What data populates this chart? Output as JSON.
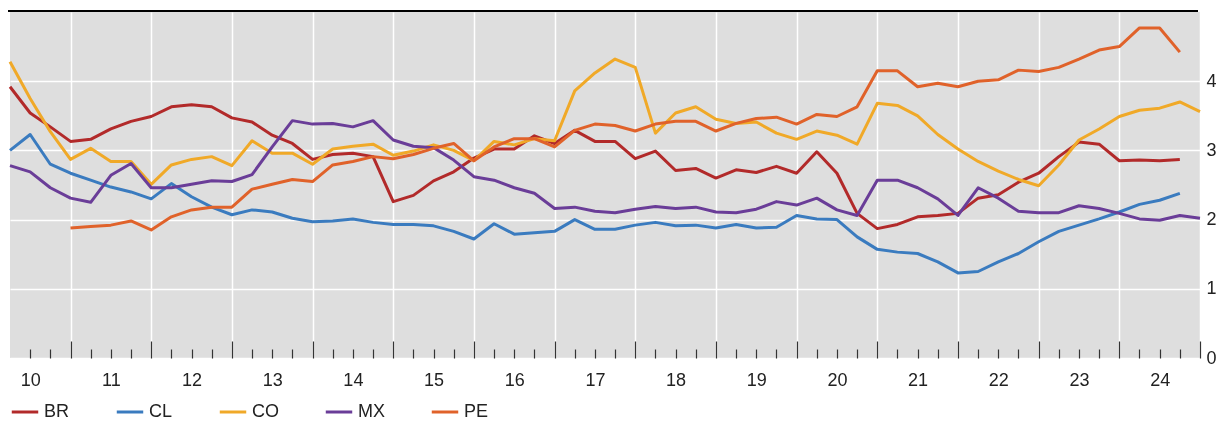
{
  "chart_data": {
    "type": "line",
    "x": [
      9.75,
      10,
      10.25,
      10.5,
      10.75,
      11,
      11.25,
      11.5,
      11.75,
      12,
      12.25,
      12.5,
      12.75,
      13,
      13.25,
      13.5,
      13.75,
      14,
      14.25,
      14.5,
      14.75,
      15,
      15.25,
      15.5,
      15.75,
      16,
      16.25,
      16.5,
      16.75,
      17,
      17.25,
      17.5,
      17.75,
      18,
      18.25,
      18.5,
      18.75,
      19,
      19.25,
      19.5,
      19.75,
      20,
      20.25,
      20.5,
      20.75,
      21,
      21.25,
      21.5,
      21.75,
      22,
      22.25,
      22.5,
      22.75,
      23,
      23.25,
      23.5,
      23.75,
      24,
      24.25,
      24.5
    ],
    "series": [
      {
        "name": "BR",
        "color": "#b22a2a",
        "values": [
          3.92,
          3.54,
          3.34,
          3.13,
          3.16,
          3.31,
          3.42,
          3.49,
          3.63,
          3.66,
          3.63,
          3.47,
          3.41,
          3.22,
          3.1,
          2.87,
          2.94,
          2.96,
          2.91,
          2.26,
          2.35,
          2.56,
          2.69,
          2.89,
          3.02,
          3.02,
          3.21,
          3.1,
          3.29,
          3.13,
          3.13,
          2.88,
          2.99,
          2.71,
          2.74,
          2.6,
          2.72,
          2.68,
          2.77,
          2.67,
          2.98,
          2.67,
          2.09,
          1.87,
          1.93,
          2.04,
          2.06,
          2.09,
          2.31,
          2.36,
          2.54,
          2.67,
          2.91,
          3.12,
          3.09,
          2.85,
          2.86,
          2.85,
          2.87,
          null
        ]
      },
      {
        "name": "CL",
        "color": "#3a7bbf",
        "values": [
          3.0,
          3.23,
          2.8,
          2.67,
          2.57,
          2.47,
          2.4,
          2.3,
          2.52,
          2.33,
          2.18,
          2.07,
          2.14,
          2.11,
          2.02,
          1.97,
          1.98,
          2.01,
          1.96,
          1.93,
          1.93,
          1.91,
          1.83,
          1.72,
          1.94,
          1.79,
          1.81,
          1.83,
          2.0,
          1.86,
          1.86,
          1.92,
          1.96,
          1.91,
          1.92,
          1.88,
          1.93,
          1.88,
          1.89,
          2.06,
          2.01,
          2.0,
          1.75,
          1.57,
          1.53,
          1.51,
          1.39,
          1.23,
          1.25,
          1.39,
          1.51,
          1.68,
          1.83,
          1.92,
          2.01,
          2.11,
          2.22,
          2.28,
          2.38,
          null
        ]
      },
      {
        "name": "CO",
        "color": "#f0a928",
        "values": [
          4.28,
          3.75,
          3.27,
          2.87,
          3.03,
          2.84,
          2.84,
          2.51,
          2.79,
          2.87,
          2.91,
          2.78,
          3.14,
          2.96,
          2.96,
          2.8,
          3.02,
          3.06,
          3.09,
          2.93,
          2.99,
          3.08,
          3.0,
          2.85,
          3.13,
          3.08,
          3.17,
          3.14,
          3.86,
          4.12,
          4.32,
          4.2,
          3.25,
          3.54,
          3.63,
          3.45,
          3.39,
          3.41,
          3.25,
          3.16,
          3.28,
          3.22,
          3.09,
          3.68,
          3.65,
          3.5,
          3.23,
          3.02,
          2.84,
          2.7,
          2.58,
          2.49,
          2.79,
          3.15,
          3.31,
          3.49,
          3.58,
          3.61,
          3.7,
          3.56
        ]
      },
      {
        "name": "MX",
        "color": "#6a3d98",
        "values": [
          2.78,
          2.69,
          2.46,
          2.31,
          2.25,
          2.64,
          2.81,
          2.46,
          2.46,
          2.51,
          2.56,
          2.55,
          2.65,
          3.05,
          3.43,
          3.38,
          3.39,
          3.34,
          3.43,
          3.15,
          3.06,
          3.04,
          2.86,
          2.62,
          2.57,
          2.46,
          2.38,
          2.16,
          2.18,
          2.12,
          2.1,
          2.15,
          2.19,
          2.16,
          2.18,
          2.11,
          2.1,
          2.15,
          2.26,
          2.21,
          2.31,
          2.14,
          2.06,
          2.57,
          2.57,
          2.46,
          2.3,
          2.06,
          2.46,
          2.31,
          2.12,
          2.1,
          2.1,
          2.2,
          2.16,
          2.09,
          2.01,
          1.99,
          2.06,
          2.02
        ]
      },
      {
        "name": "PE",
        "color": "#e0622a",
        "values": [
          null,
          null,
          null,
          1.88,
          1.9,
          1.92,
          1.98,
          1.85,
          2.04,
          2.14,
          2.18,
          2.18,
          2.44,
          2.51,
          2.58,
          2.55,
          2.79,
          2.84,
          2.91,
          2.88,
          2.94,
          3.03,
          3.1,
          2.85,
          3.05,
          3.17,
          3.17,
          3.05,
          3.29,
          3.38,
          3.36,
          3.28,
          3.38,
          3.42,
          3.42,
          3.28,
          3.39,
          3.46,
          3.48,
          3.38,
          3.52,
          3.49,
          3.63,
          4.15,
          4.15,
          3.92,
          3.97,
          3.92,
          4.0,
          4.02,
          4.16,
          4.14,
          4.2,
          4.32,
          4.45,
          4.5,
          4.77,
          4.77,
          4.42,
          null
        ]
      }
    ],
    "xlim": [
      9.75,
      24.5
    ],
    "xticks": [
      10,
      {
        "value": 10.25,
        "label": null
      },
      {
        "value": 10.5,
        "label": null
      },
      {
        "value": 10.75,
        "label": null
      },
      11,
      {
        "value": 11.25,
        "label": null
      },
      {
        "value": 11.5,
        "label": null
      },
      {
        "value": 11.75,
        "label": null
      },
      12,
      {
        "value": 12.25,
        "label": null
      },
      {
        "value": 12.5,
        "label": null
      },
      {
        "value": 12.75,
        "label": null
      },
      13,
      {
        "value": 13.25,
        "label": null
      },
      {
        "value": 13.5,
        "label": null
      },
      {
        "value": 13.75,
        "label": null
      },
      14,
      {
        "value": 14.25,
        "label": null
      },
      {
        "value": 14.5,
        "label": null
      },
      {
        "value": 14.75,
        "label": null
      },
      15,
      {
        "value": 15.25,
        "label": null
      },
      {
        "value": 15.5,
        "label": null
      },
      {
        "value": 15.75,
        "label": null
      },
      16,
      {
        "value": 16.25,
        "label": null
      },
      {
        "value": 16.5,
        "label": null
      },
      {
        "value": 16.75,
        "label": null
      },
      17,
      {
        "value": 17.25,
        "label": null
      },
      {
        "value": 17.5,
        "label": null
      },
      {
        "value": 17.75,
        "label": null
      },
      18,
      {
        "value": 18.25,
        "label": null
      },
      {
        "value": 18.5,
        "label": null
      },
      {
        "value": 18.75,
        "label": null
      },
      19,
      {
        "value": 19.25,
        "label": null
      },
      {
        "value": 19.5,
        "label": null
      },
      {
        "value": 19.75,
        "label": null
      },
      20,
      {
        "value": 20.25,
        "label": null
      },
      {
        "value": 20.5,
        "label": null
      },
      {
        "value": 20.75,
        "label": null
      },
      21,
      {
        "value": 21.25,
        "label": null
      },
      {
        "value": 21.5,
        "label": null
      },
      {
        "value": 21.75,
        "label": null
      },
      22,
      {
        "value": 22.25,
        "label": null
      },
      {
        "value": 22.5,
        "label": null
      },
      {
        "value": 22.75,
        "label": null
      },
      23,
      {
        "value": 23.25,
        "label": null
      },
      {
        "value": 23.5,
        "label": null
      },
      {
        "value": 23.75,
        "label": null
      },
      24,
      {
        "value": 24.25,
        "label": null
      },
      {
        "value": 24.5,
        "label": null
      }
    ],
    "ylim": [
      0,
      5
    ],
    "yticks": [
      0,
      1,
      2,
      3,
      4
    ],
    "grid": true,
    "legend": "bottom left",
    "line_style": "solid"
  }
}
